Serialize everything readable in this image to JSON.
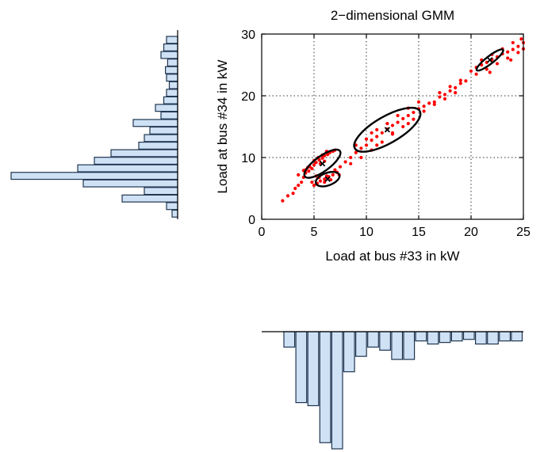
{
  "chart_data": [
    {
      "type": "scatter",
      "title": "2−dimensional GMM",
      "xlabel": "Load at bus #33 in kW",
      "ylabel": "Load at bus #34 in kW",
      "xlim": [
        0,
        25
      ],
      "ylim": [
        0,
        30
      ],
      "xticks": [
        0,
        5,
        10,
        15,
        20,
        25
      ],
      "yticks": [
        0,
        10,
        20,
        30
      ],
      "xtick_labels": [
        "0",
        "5",
        "10",
        "15",
        "20",
        "25"
      ],
      "ytick_labels": [
        "0",
        "10",
        "20",
        "30"
      ],
      "grid": true,
      "point_color": "#ff0000",
      "points": [
        [
          2.0,
          3.0
        ],
        [
          2.5,
          3.8
        ],
        [
          3.0,
          4.2
        ],
        [
          3.2,
          5.0
        ],
        [
          3.5,
          5.5
        ],
        [
          3.8,
          6.0
        ],
        [
          4.0,
          6.8
        ],
        [
          4.2,
          7.5
        ],
        [
          4.5,
          7.8
        ],
        [
          4.8,
          8.2
        ],
        [
          5.0,
          8.8
        ],
        [
          5.2,
          9.2
        ],
        [
          5.5,
          9.6
        ],
        [
          5.8,
          9.9
        ],
        [
          6.0,
          10.3
        ],
        [
          6.3,
          10.5
        ],
        [
          6.5,
          10.8
        ],
        [
          6.8,
          11.0
        ],
        [
          7.0,
          11.2
        ],
        [
          4.2,
          8.0
        ],
        [
          4.6,
          8.5
        ],
        [
          5.0,
          9.5
        ],
        [
          5.4,
          10.0
        ],
        [
          5.8,
          10.4
        ],
        [
          6.2,
          11.0
        ],
        [
          3.5,
          7.2
        ],
        [
          4.0,
          7.9
        ],
        [
          4.4,
          8.4
        ],
        [
          5.6,
          9.0
        ],
        [
          6.0,
          9.4
        ],
        [
          5.0,
          5.5
        ],
        [
          5.3,
          5.8
        ],
        [
          5.6,
          6.2
        ],
        [
          6.0,
          6.5
        ],
        [
          6.4,
          6.9
        ],
        [
          6.8,
          7.2
        ],
        [
          7.2,
          7.6
        ],
        [
          5.5,
          6.8
        ],
        [
          6.2,
          7.0
        ],
        [
          7.0,
          8.0
        ],
        [
          6.0,
          6.0
        ],
        [
          6.6,
          6.4
        ],
        [
          7.4,
          7.2
        ],
        [
          4.8,
          6.0
        ],
        [
          5.2,
          7.0
        ],
        [
          7.5,
          8.5
        ],
        [
          8.0,
          9.3
        ],
        [
          8.5,
          10.0
        ],
        [
          9.0,
          10.8
        ],
        [
          9.5,
          11.5
        ],
        [
          10.0,
          12.0
        ],
        [
          10.5,
          12.8
        ],
        [
          11.0,
          13.4
        ],
        [
          11.5,
          14.0
        ],
        [
          12.0,
          14.6
        ],
        [
          12.5,
          15.2
        ],
        [
          13.0,
          15.7
        ],
        [
          13.5,
          16.3
        ],
        [
          14.0,
          16.8
        ],
        [
          14.5,
          17.3
        ],
        [
          15.0,
          17.9
        ],
        [
          15.5,
          18.3
        ],
        [
          16.0,
          18.8
        ],
        [
          9.0,
          12.0
        ],
        [
          10.0,
          13.0
        ],
        [
          11.0,
          14.5
        ],
        [
          12.0,
          15.5
        ],
        [
          13.0,
          16.8
        ],
        [
          14.0,
          18.0
        ],
        [
          15.0,
          19.0
        ],
        [
          8.5,
          9.0
        ],
        [
          9.5,
          10.0
        ],
        [
          10.5,
          11.2
        ],
        [
          11.5,
          12.5
        ],
        [
          12.5,
          13.8
        ],
        [
          13.5,
          15.0
        ],
        [
          14.5,
          16.2
        ],
        [
          15.5,
          17.5
        ],
        [
          16.5,
          18.6
        ],
        [
          10.5,
          14.0
        ],
        [
          12.5,
          14.0
        ],
        [
          14.0,
          15.5
        ],
        [
          11.0,
          12.0
        ],
        [
          16.5,
          19.0
        ],
        [
          17.0,
          19.8
        ],
        [
          17.5,
          20.2
        ],
        [
          18.0,
          20.8
        ],
        [
          18.5,
          21.3
        ],
        [
          19.0,
          22.0
        ],
        [
          19.5,
          22.4
        ],
        [
          17.0,
          20.5
        ],
        [
          18.0,
          21.5
        ],
        [
          19.0,
          22.5
        ],
        [
          17.5,
          19.5
        ],
        [
          18.5,
          20.5
        ],
        [
          20.0,
          24.0
        ],
        [
          20.5,
          24.6
        ],
        [
          21.0,
          25.0
        ],
        [
          21.5,
          25.4
        ],
        [
          22.0,
          25.9
        ],
        [
          22.5,
          26.3
        ],
        [
          23.0,
          26.8
        ],
        [
          23.5,
          27.1
        ],
        [
          24.0,
          27.5
        ],
        [
          24.5,
          28.0
        ],
        [
          25.0,
          28.6
        ],
        [
          20.5,
          23.5
        ],
        [
          21.5,
          24.3
        ],
        [
          22.5,
          25.2
        ],
        [
          23.5,
          26.1
        ],
        [
          24.5,
          27.0
        ],
        [
          21.0,
          25.8
        ],
        [
          22.0,
          26.7
        ],
        [
          23.0,
          27.6
        ],
        [
          24.0,
          28.6
        ],
        [
          24.8,
          29.2
        ],
        [
          25.0,
          27.6
        ],
        [
          23.8,
          25.8
        ],
        [
          21.8,
          23.8
        ]
      ],
      "gaussian_components": [
        {
          "mean": [
            5.8,
            9.0
          ],
          "semi_axes": [
            2.6,
            0.9
          ],
          "angle_deg": 36
        },
        {
          "mean": [
            6.3,
            6.5
          ],
          "semi_axes": [
            1.5,
            0.75
          ],
          "angle_deg": 20
        },
        {
          "mean": [
            12.0,
            14.5
          ],
          "semi_axes": [
            4.5,
            1.6
          ],
          "angle_deg": 30
        },
        {
          "mean": [
            21.8,
            25.8
          ],
          "semi_axes": [
            2.0,
            0.45
          ],
          "angle_deg": 38
        }
      ]
    },
    {
      "type": "bar",
      "orientation": "horizontal",
      "description_role": "marginal-y",
      "values": [
        0.02,
        0.025,
        0.03,
        0.018,
        0.022,
        0.02,
        0.015,
        0.02,
        0.025,
        0.04,
        0.03,
        0.08,
        0.05,
        0.06,
        0.07,
        0.12,
        0.15,
        0.18,
        0.3,
        0.17,
        0.06,
        0.1,
        0.02,
        0.01
      ],
      "value_max": 0.3
    },
    {
      "type": "bar",
      "orientation": "vertical",
      "description_role": "marginal-x",
      "values": [
        0.05,
        0.23,
        0.24,
        0.36,
        0.38,
        0.13,
        0.08,
        0.05,
        0.06,
        0.09,
        0.09,
        0.03,
        0.04,
        0.035,
        0.03,
        0.025,
        0.04,
        0.04,
        0.03,
        0.03
      ],
      "value_max": 0.38
    }
  ]
}
